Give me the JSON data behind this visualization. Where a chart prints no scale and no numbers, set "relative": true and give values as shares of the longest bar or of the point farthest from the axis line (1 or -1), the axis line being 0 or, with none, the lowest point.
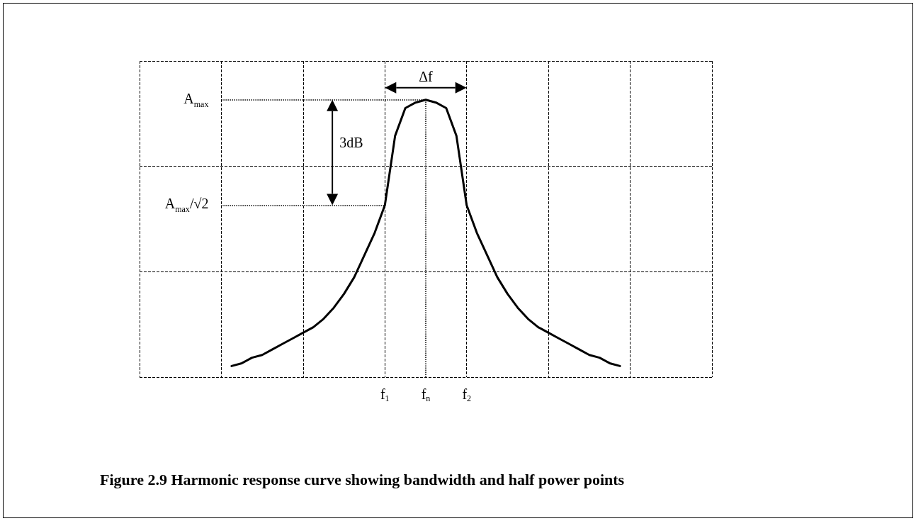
{
  "chart_data": {
    "type": "line",
    "title": "Figure 2.9 Harmonic response curve showing bandwidth and half power points",
    "relative": true,
    "categories": [
      null,
      null,
      null,
      null,
      null,
      null,
      null,
      null,
      null,
      null,
      null,
      null,
      null,
      null,
      null,
      null,
      null,
      null,
      null,
      null,
      null,
      null,
      null,
      null,
      "f$_{1}$",
      null,
      null,
      null,
      "f$_{n}$",
      null,
      null,
      null,
      "f$_{2}$",
      null,
      null,
      null,
      null,
      null,
      null,
      null,
      null,
      null,
      null,
      null,
      null,
      null,
      null,
      null,
      null,
      null,
      null,
      null,
      null,
      null,
      null,
      null,
      null
    ],
    "series": [
      {
        "color": "#000000",
        "values": [
          null,
          null,
          null,
          null,
          null,
          null,
          null,
          null,
          null,
          0.04,
          0.05,
          0.07,
          0.08,
          0.1,
          0.12,
          0.14,
          0.16,
          0.18,
          0.21,
          0.25,
          0.3,
          0.36,
          0.44,
          0.52,
          0.62,
          0.87,
          0.97,
          0.99,
          1.0,
          0.99,
          0.97,
          0.87,
          0.62,
          0.52,
          0.44,
          0.36,
          0.3,
          0.25,
          0.21,
          0.18,
          0.16,
          0.14,
          0.12,
          0.1,
          0.08,
          0.07,
          0.05,
          0.04,
          null,
          null,
          null,
          null,
          null,
          null,
          null,
          null,
          null
        ]
      }
    ],
    "ref_lines": [
      {
        "axis": "y",
        "value": 1.0,
        "label": "A$_{max}$",
        "line_style": "dotted"
      },
      {
        "axis": "y",
        "value": 0.62,
        "label": "A$_{max}$/√2",
        "line_style": "dotted"
      },
      {
        "axis": "x",
        "value": "f$_{n}$",
        "line_style": "dotted"
      }
    ],
    "annotations": [
      "Δf",
      "3dB"
    ],
    "grid": true,
    "marker": "none",
    "line_style": "solid"
  }
}
